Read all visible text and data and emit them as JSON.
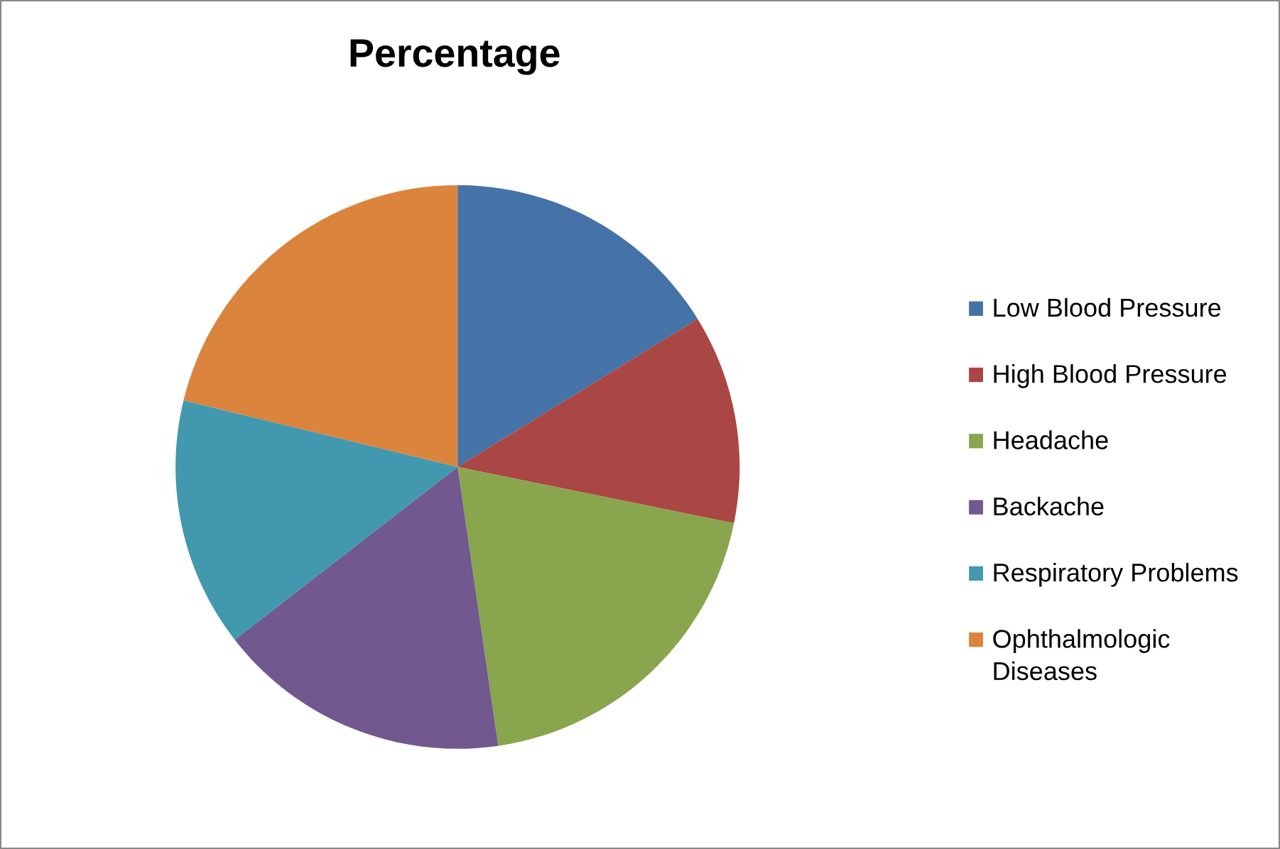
{
  "chart_data": {
    "type": "pie",
    "title": "Percentage",
    "categories": [
      "Low Blood Pressure",
      "High Blood Pressure",
      "Headache",
      "Backache",
      "Respiratory Problems",
      "Ophthalmologic Diseases"
    ],
    "values": [
      16.2,
      12.0,
      19.5,
      16.8,
      14.3,
      21.2
    ],
    "colors": [
      "#4572a7",
      "#aa4643",
      "#89a54e",
      "#71588f",
      "#4198af",
      "#db843d"
    ],
    "legend": "right"
  }
}
